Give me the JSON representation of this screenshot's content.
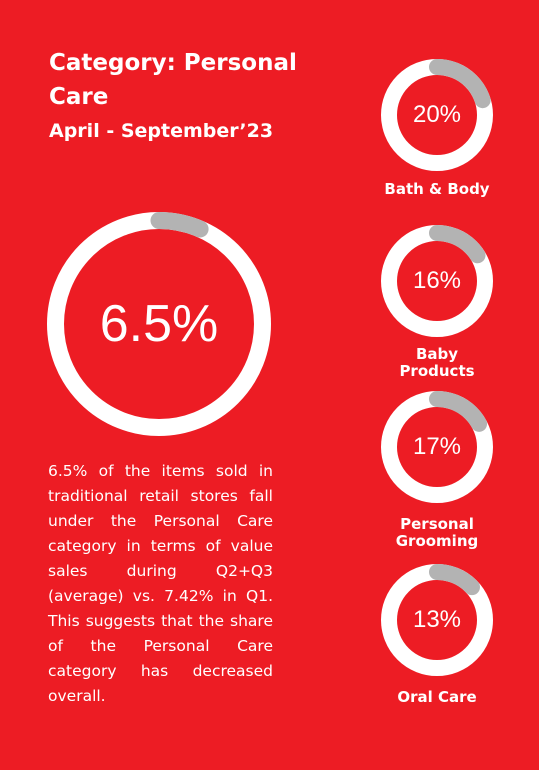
{
  "header": {
    "title": "Category: Personal Care",
    "subtitle": "April - September’23"
  },
  "main_stat": {
    "value_label": "6.5%",
    "value": 6.5
  },
  "description": "6.5% of the items sold in traditional retail stores fall under the Personal Care category in terms of value sales during Q2+Q3 (average) vs. 7.42% in Q1. This suggests that the share of the Personal Care category has decreased overall.",
  "colors": {
    "background": "#ed1c24",
    "ring": "#ffffff",
    "arc": "#b3b3b3"
  },
  "chart_data": [
    {
      "type": "pie",
      "categories": [
        "Personal Care"
      ],
      "values": [
        6.5
      ],
      "value_labels": [
        "6.5%"
      ]
    },
    {
      "type": "pie",
      "categories": [
        "Bath & Body",
        "Baby Products",
        "Personal Grooming",
        "Oral Care"
      ],
      "values": [
        20,
        16,
        17,
        13
      ],
      "value_labels": [
        "20%",
        "16%",
        "17%",
        "13%"
      ]
    }
  ]
}
